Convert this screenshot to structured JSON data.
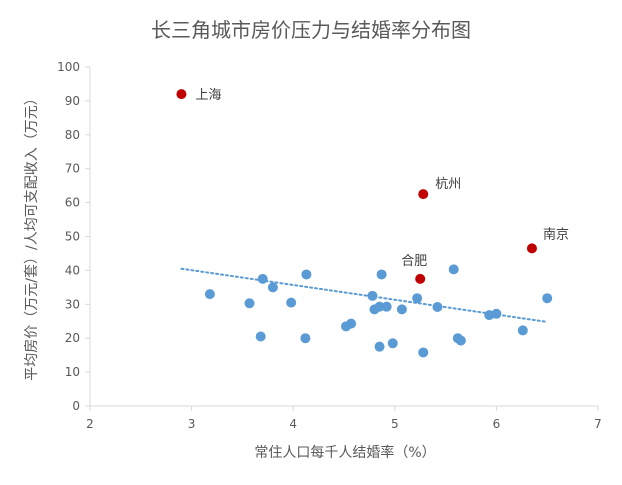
{
  "chart_data": {
    "type": "scatter",
    "title": "长三角城市房价压力与结婚率分布图",
    "xlabel": "常住人口每千人结婚率（%）",
    "ylabel": "平均房价（万元/套）/人均可支配收入（万元）",
    "xlim": [
      2,
      7
    ],
    "ylim": [
      0,
      100
    ],
    "xticks": [
      2,
      3,
      4,
      5,
      6,
      7
    ],
    "yticks": [
      0,
      10,
      20,
      30,
      40,
      50,
      60,
      70,
      80,
      90,
      100
    ],
    "grid": false,
    "trendline": {
      "type": "linear",
      "style": "dotted",
      "color": "#5B9BD5",
      "from": [
        2.9,
        40.5
      ],
      "to": [
        6.5,
        24.8
      ]
    },
    "colors": {
      "points": "#5B9BD5",
      "highlight": "#C00000",
      "trendline": "#5B9BD5",
      "axis": "#D9D9D9",
      "text": "#595959"
    },
    "highlighted": [
      {
        "label": "上海",
        "x": 2.9,
        "y": 92
      },
      {
        "label": "杭州",
        "x": 5.28,
        "y": 62.5
      },
      {
        "label": "南京",
        "x": 6.35,
        "y": 46.5
      },
      {
        "label": "合肥",
        "x": 5.25,
        "y": 37.5
      }
    ],
    "points": [
      {
        "x": 3.18,
        "y": 33
      },
      {
        "x": 3.57,
        "y": 30.3
      },
      {
        "x": 3.7,
        "y": 37.5
      },
      {
        "x": 3.68,
        "y": 20.5
      },
      {
        "x": 3.8,
        "y": 35
      },
      {
        "x": 3.98,
        "y": 30.5
      },
      {
        "x": 4.13,
        "y": 38.8
      },
      {
        "x": 4.12,
        "y": 20
      },
      {
        "x": 4.52,
        "y": 23.5
      },
      {
        "x": 4.57,
        "y": 24.3
      },
      {
        "x": 4.78,
        "y": 32.5
      },
      {
        "x": 4.8,
        "y": 28.5
      },
      {
        "x": 4.85,
        "y": 29.3
      },
      {
        "x": 4.87,
        "y": 38.8
      },
      {
        "x": 4.92,
        "y": 29.3
      },
      {
        "x": 4.85,
        "y": 17.5
      },
      {
        "x": 4.98,
        "y": 18.5
      },
      {
        "x": 5.07,
        "y": 28.5
      },
      {
        "x": 5.22,
        "y": 31.8
      },
      {
        "x": 5.28,
        "y": 15.8
      },
      {
        "x": 5.42,
        "y": 29.2
      },
      {
        "x": 5.58,
        "y": 40.3
      },
      {
        "x": 5.62,
        "y": 20
      },
      {
        "x": 5.65,
        "y": 19.3
      },
      {
        "x": 5.93,
        "y": 26.8
      },
      {
        "x": 6.0,
        "y": 27.2
      },
      {
        "x": 6.26,
        "y": 22.3
      },
      {
        "x": 6.5,
        "y": 31.8
      }
    ]
  }
}
